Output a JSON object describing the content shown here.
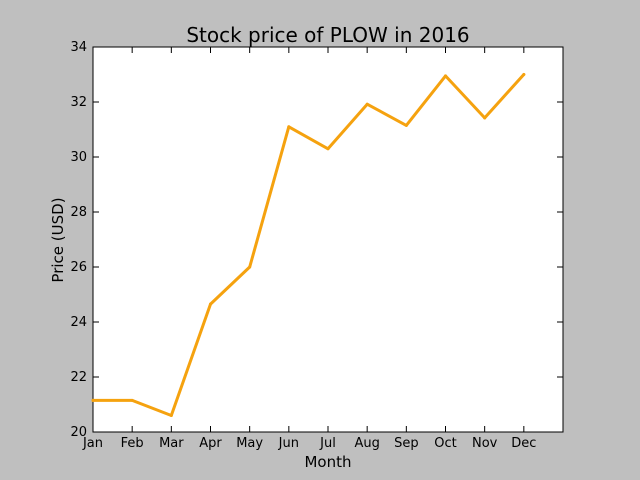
{
  "chart_data": {
    "type": "line",
    "title": "Stock price of PLOW in 2016",
    "xlabel": "Month",
    "ylabel": "Price (USD)",
    "categories": [
      "Jan",
      "Feb",
      "Mar",
      "Apr",
      "May",
      "Jun",
      "Jul",
      "Aug",
      "Sep",
      "Oct",
      "Nov",
      "Dec"
    ],
    "series": [
      {
        "values": [
          21.15,
          21.15,
          20.6,
          24.65,
          26.0,
          31.1,
          30.3,
          31.92,
          31.15,
          32.95,
          31.42,
          33.0
        ]
      }
    ],
    "xlim": [
      0,
      12
    ],
    "ylim": [
      20,
      34
    ],
    "yticks": [
      "20",
      "22",
      "24",
      "26",
      "28",
      "30",
      "32",
      "34"
    ],
    "grid": false,
    "legend": "none",
    "colors": {
      "line": "#f5a20f",
      "background": "#bfbfbf",
      "plot_area": "#ffffff"
    }
  }
}
